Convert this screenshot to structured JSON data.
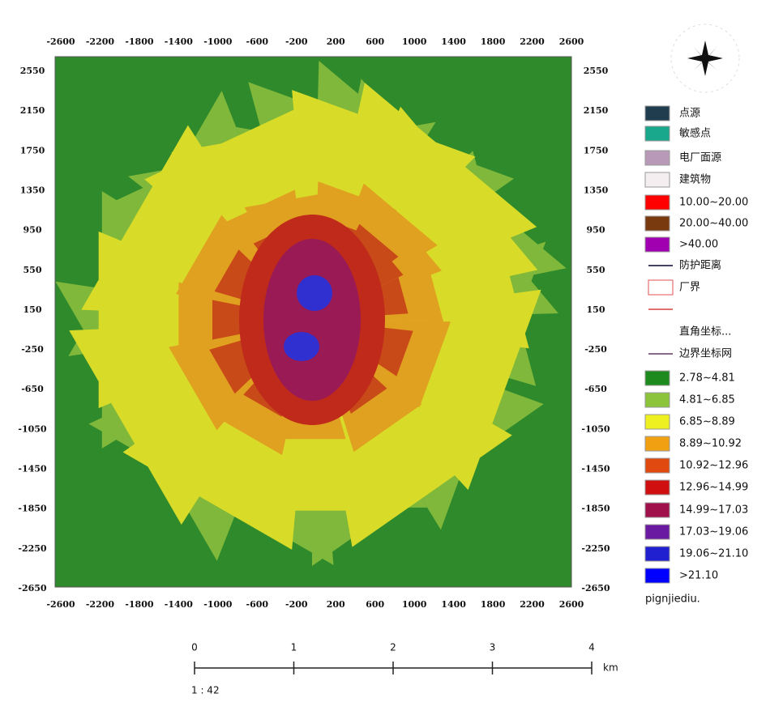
{
  "axes": {
    "x_ticks": [
      "-2600",
      "-2200",
      "-1800",
      "-1400",
      "-1000",
      "-600",
      "-200",
      "200",
      "600",
      "1000",
      "1400",
      "1800",
      "2200",
      "2600"
    ],
    "y_ticks": [
      "2550",
      "2150",
      "1750",
      "1350",
      "950",
      "550",
      "150",
      "-250",
      "-650",
      "-1050",
      "-1450",
      "-1850",
      "-2250",
      "-2650"
    ]
  },
  "legend": [
    {
      "label": "点源",
      "kind": "square",
      "color": "#1f3d4f"
    },
    {
      "label": "敏感点",
      "kind": "square",
      "color": "#1aa88c"
    },
    {
      "label": "电厂面源",
      "kind": "square",
      "color": "#b89ab8"
    },
    {
      "label": "建筑物",
      "kind": "square",
      "color": "#f4eef0"
    },
    {
      "label": "10.00~20.00",
      "kind": "square",
      "color": "#ff0000"
    },
    {
      "label": "20.00~40.00",
      "kind": "square",
      "color": "#7a3a10"
    },
    {
      "label": ">40.00",
      "kind": "square",
      "color": "#a000b0"
    },
    {
      "label": "防护距离",
      "kind": "line",
      "color": "#444466"
    },
    {
      "label": "厂界",
      "kind": "outline",
      "color": "#e05050"
    },
    {
      "label": "直角坐标...",
      "kind": "none",
      "color": "#ffffff"
    },
    {
      "label": "边界坐标网",
      "kind": "line",
      "color": "#8a6a8a"
    },
    {
      "label": "2.78~4.81",
      "kind": "square",
      "color": "#1e8a1e"
    },
    {
      "label": "4.81~6.85",
      "kind": "square",
      "color": "#8cc43c"
    },
    {
      "label": "6.85~8.89",
      "kind": "square",
      "color": "#eef020"
    },
    {
      "label": "8.89~10.92",
      "kind": "square",
      "color": "#f0a010"
    },
    {
      "label": "10.92~12.96",
      "kind": "square",
      "color": "#e04a10"
    },
    {
      "label": "12.96~14.99",
      "kind": "square",
      "color": "#d01010"
    },
    {
      "label": "14.99~17.03",
      "kind": "square",
      "color": "#a0104a"
    },
    {
      "label": "17.03~19.06",
      "kind": "square",
      "color": "#6a1aa0"
    },
    {
      "label": "19.06~21.10",
      "kind": "square",
      "color": "#2020d0"
    },
    {
      "label": ">21.10",
      "kind": "square",
      "color": "#0000ff"
    }
  ],
  "layer_name": "pignjiediu.",
  "scale_bar": {
    "ticks": [
      "0",
      "1",
      "2",
      "3",
      "4"
    ],
    "unit": "km",
    "ratio": "1 : 42"
  }
}
